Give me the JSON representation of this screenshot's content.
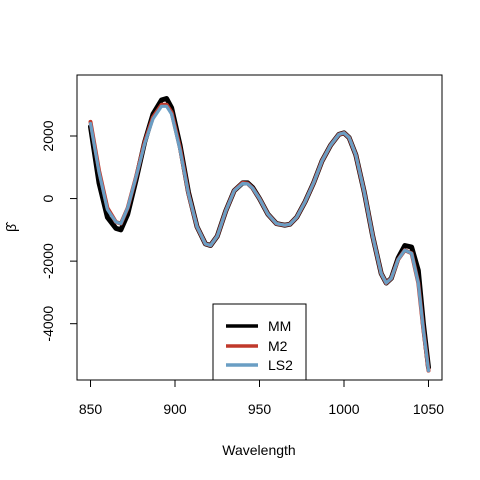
{
  "chart_data": {
    "type": "line",
    "title": "",
    "xlabel": "Wavelength",
    "ylabel": "β̂",
    "xlim": [
      842,
      1058
    ],
    "ylim": [
      -5800,
      3950
    ],
    "xticks": [
      850,
      900,
      950,
      1000,
      1050
    ],
    "xtick_labels": [
      "850",
      "900",
      "950",
      "1000",
      "1050"
    ],
    "yticks": [
      -4000,
      -2000,
      0,
      2000
    ],
    "ytick_labels": [
      "-4000",
      "-2000",
      "0",
      "2000"
    ],
    "grid": false,
    "legend_position": "bottom-center",
    "series": [
      {
        "name": "MM",
        "color": "#000000",
        "x": [
          850,
          855,
          860,
          865,
          868,
          872,
          877,
          882,
          887,
          892,
          895,
          898,
          903,
          908,
          913,
          918,
          921,
          925,
          930,
          935,
          940,
          943,
          946,
          950,
          955,
          960,
          965,
          968,
          972,
          977,
          982,
          987,
          992,
          997,
          1000,
          1003,
          1007,
          1012,
          1017,
          1022,
          1025,
          1028,
          1032,
          1036,
          1040,
          1044,
          1047,
          1050
        ],
        "y": [
          2300,
          500,
          -600,
          -950,
          -1000,
          -500,
          600,
          1800,
          2700,
          3150,
          3200,
          2900,
          1700,
          200,
          -900,
          -1450,
          -1500,
          -1200,
          -400,
          250,
          500,
          500,
          350,
          0,
          -500,
          -800,
          -850,
          -820,
          -600,
          -100,
          500,
          1200,
          1700,
          2050,
          2100,
          1950,
          1400,
          200,
          -1200,
          -2400,
          -2700,
          -2550,
          -1900,
          -1500,
          -1550,
          -2300,
          -4000,
          -5400
        ]
      },
      {
        "name": "M2",
        "color": "#c0392b",
        "x": [
          850,
          855,
          860,
          865,
          868,
          872,
          877,
          882,
          887,
          892,
          895,
          898,
          903,
          908,
          913,
          918,
          921,
          925,
          930,
          935,
          940,
          943,
          946,
          950,
          955,
          960,
          965,
          968,
          972,
          977,
          982,
          987,
          992,
          997,
          1000,
          1003,
          1007,
          1012,
          1017,
          1022,
          1025,
          1028,
          1032,
          1036,
          1040,
          1044,
          1047,
          1050
        ],
        "y": [
          2450,
          900,
          -300,
          -750,
          -800,
          -300,
          700,
          1800,
          2600,
          3000,
          3000,
          2750,
          1600,
          150,
          -900,
          -1450,
          -1500,
          -1200,
          -400,
          250,
          500,
          480,
          330,
          0,
          -500,
          -800,
          -850,
          -820,
          -600,
          -100,
          500,
          1200,
          1700,
          2050,
          2100,
          1950,
          1400,
          200,
          -1200,
          -2400,
          -2700,
          -2550,
          -1950,
          -1650,
          -1750,
          -2700,
          -4200,
          -5500
        ]
      },
      {
        "name": "LS2",
        "color": "#6a9ec4",
        "x": [
          850,
          855,
          860,
          865,
          868,
          872,
          877,
          882,
          887,
          892,
          895,
          898,
          903,
          908,
          913,
          918,
          921,
          925,
          930,
          935,
          940,
          943,
          946,
          950,
          955,
          960,
          965,
          968,
          972,
          977,
          982,
          987,
          992,
          997,
          1000,
          1003,
          1007,
          1012,
          1017,
          1022,
          1025,
          1028,
          1032,
          1036,
          1040,
          1044,
          1047,
          1050
        ],
        "y": [
          2400,
          850,
          -350,
          -750,
          -800,
          -300,
          700,
          1750,
          2550,
          2950,
          2950,
          2700,
          1550,
          150,
          -900,
          -1450,
          -1500,
          -1200,
          -400,
          250,
          480,
          470,
          330,
          0,
          -500,
          -800,
          -850,
          -820,
          -600,
          -100,
          500,
          1200,
          1700,
          2050,
          2100,
          1950,
          1400,
          200,
          -1200,
          -2400,
          -2700,
          -2550,
          -1950,
          -1650,
          -1750,
          -2700,
          -4200,
          -5500
        ]
      }
    ]
  }
}
